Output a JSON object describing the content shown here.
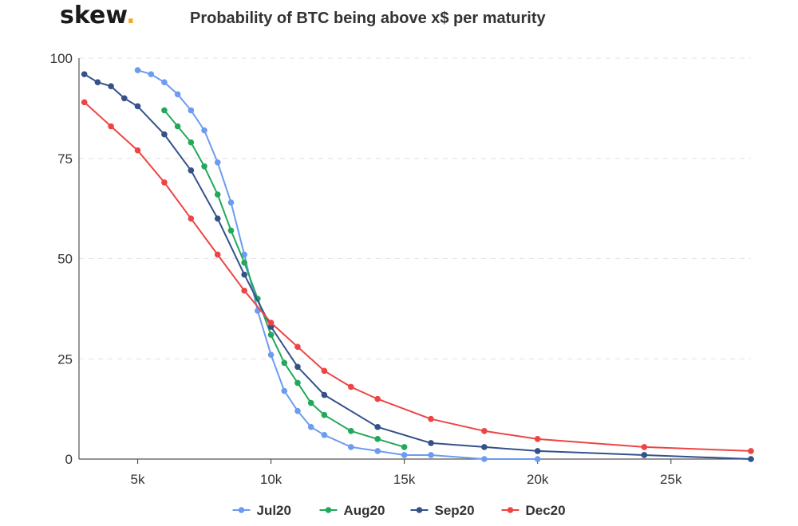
{
  "header": {
    "logo_text": "skew",
    "logo_dot": ".",
    "title": "Probability of BTC being above x$ per maturity"
  },
  "colors": {
    "logo_dot": "#f5a623",
    "grid": "#e0e0e0",
    "axis": "#555555"
  },
  "chart_data": {
    "type": "line",
    "title": "Probability of BTC being above x$ per maturity",
    "xlabel": "",
    "ylabel": "",
    "xlim": [
      2800,
      28000
    ],
    "ylim": [
      0,
      100
    ],
    "x_ticks": [
      5000,
      10000,
      15000,
      20000,
      25000
    ],
    "x_tick_labels": [
      "5k",
      "10k",
      "15k",
      "20k",
      "25k"
    ],
    "y_ticks": [
      0,
      25,
      50,
      75,
      100
    ],
    "y_tick_labels": [
      "0",
      "25",
      "50",
      "75",
      "100"
    ],
    "grid": "horizontal dashed",
    "legend_position": "bottom-center",
    "series": [
      {
        "name": "Jul20",
        "color": "#6c9bf0",
        "points": [
          [
            5000,
            97
          ],
          [
            5500,
            96
          ],
          [
            6000,
            94
          ],
          [
            6500,
            91
          ],
          [
            7000,
            87
          ],
          [
            7500,
            82
          ],
          [
            8000,
            74
          ],
          [
            8500,
            64
          ],
          [
            9000,
            51
          ],
          [
            9500,
            37
          ],
          [
            10000,
            26
          ],
          [
            10500,
            17
          ],
          [
            11000,
            12
          ],
          [
            11500,
            8
          ],
          [
            12000,
            6
          ],
          [
            13000,
            3
          ],
          [
            14000,
            2
          ],
          [
            15000,
            1
          ],
          [
            16000,
            1
          ],
          [
            18000,
            0
          ],
          [
            20000,
            0
          ]
        ]
      },
      {
        "name": "Aug20",
        "color": "#22a85a",
        "points": [
          [
            6000,
            87
          ],
          [
            6500,
            83
          ],
          [
            7000,
            79
          ],
          [
            7500,
            73
          ],
          [
            8000,
            66
          ],
          [
            8500,
            57
          ],
          [
            9000,
            49
          ],
          [
            9500,
            40
          ],
          [
            10000,
            31
          ],
          [
            10500,
            24
          ],
          [
            11000,
            19
          ],
          [
            11500,
            14
          ],
          [
            12000,
            11
          ],
          [
            13000,
            7
          ],
          [
            14000,
            5
          ],
          [
            15000,
            3
          ]
        ]
      },
      {
        "name": "Sep20",
        "color": "#34518a",
        "points": [
          [
            3000,
            96
          ],
          [
            3500,
            94
          ],
          [
            4000,
            93
          ],
          [
            4500,
            90
          ],
          [
            5000,
            88
          ],
          [
            6000,
            81
          ],
          [
            7000,
            72
          ],
          [
            8000,
            60
          ],
          [
            9000,
            46
          ],
          [
            10000,
            33
          ],
          [
            11000,
            23
          ],
          [
            12000,
            16
          ],
          [
            14000,
            8
          ],
          [
            16000,
            4
          ],
          [
            18000,
            3
          ],
          [
            20000,
            2
          ],
          [
            24000,
            1
          ],
          [
            28000,
            0
          ]
        ]
      },
      {
        "name": "Dec20",
        "color": "#ee4444",
        "points": [
          [
            3000,
            89
          ],
          [
            4000,
            83
          ],
          [
            5000,
            77
          ],
          [
            6000,
            69
          ],
          [
            7000,
            60
          ],
          [
            8000,
            51
          ],
          [
            9000,
            42
          ],
          [
            10000,
            34
          ],
          [
            11000,
            28
          ],
          [
            12000,
            22
          ],
          [
            13000,
            18
          ],
          [
            14000,
            15
          ],
          [
            16000,
            10
          ],
          [
            18000,
            7
          ],
          [
            20000,
            5
          ],
          [
            24000,
            3
          ],
          [
            28000,
            2
          ]
        ]
      }
    ]
  }
}
